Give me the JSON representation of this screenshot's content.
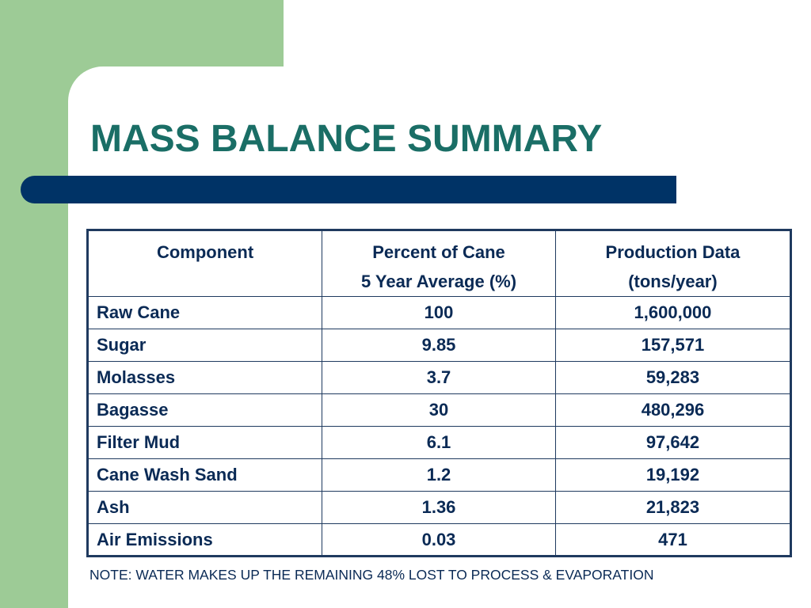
{
  "slide": {
    "title": "MASS BALANCE SUMMARY",
    "note": "NOTE:  WATER MAKES UP THE REMAINING 48% LOST TO PROCESS & EVAPORATION"
  },
  "table": {
    "headers": [
      {
        "line1": "Component",
        "line2": ""
      },
      {
        "line1": "Percent of Cane",
        "line2": "5 Year Average (%)"
      },
      {
        "line1": "Production Data",
        "line2": "(tons/year)"
      }
    ],
    "rows": [
      {
        "component": "Raw Cane",
        "percent": "100",
        "production": "1,600,000"
      },
      {
        "component": "Sugar",
        "percent": "9.85",
        "production": "157,571"
      },
      {
        "component": "Molasses",
        "percent": "3.7",
        "production": "59,283"
      },
      {
        "component": "Bagasse",
        "percent": "30",
        "production": "480,296"
      },
      {
        "component": "Filter Mud",
        "percent": "6.1",
        "production": "97,642"
      },
      {
        "component": "Cane Wash Sand",
        "percent": "1.2",
        "production": "19,192"
      },
      {
        "component": "Ash",
        "percent": "1.36",
        "production": "21,823"
      },
      {
        "component": "Air Emissions",
        "percent": "0.03",
        "production": "471"
      }
    ]
  },
  "colors": {
    "title": "#1a6e66",
    "accent_bar": "#003366",
    "side_block": "#9dcb96",
    "table_text": "#0a2a55"
  }
}
